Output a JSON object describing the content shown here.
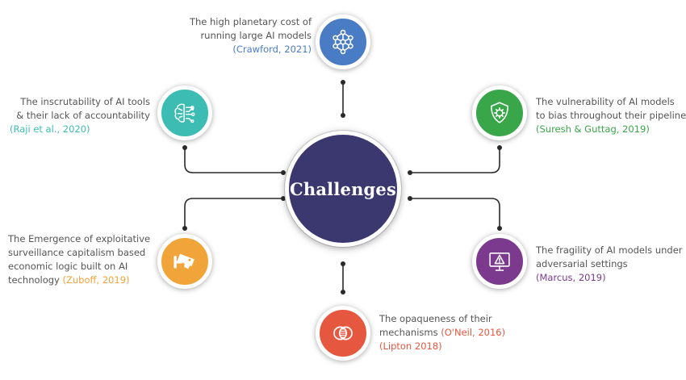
{
  "hub": {
    "label": "Challenges",
    "color": "#3b3870"
  },
  "challenges": [
    {
      "id": "planetary-cost",
      "color": "#4a7cc6",
      "icon": "neural-network-icon",
      "lines": [
        "The high planetary cost of",
        "running large AI models"
      ],
      "citation": "(Crawford, 2021)"
    },
    {
      "id": "inscrutability",
      "color": "#3cbcb3",
      "icon": "ai-brain-icon",
      "lines": [
        "The inscrutability of AI tools",
        "& their lack of accountability"
      ],
      "citation": "(Raji et al., 2020)"
    },
    {
      "id": "bias-vulnerability",
      "color": "#3aa64a",
      "icon": "shield-virus-icon",
      "lines": [
        "The vulnerability of AI models",
        "to bias throughout their pipeline"
      ],
      "citation": "(Suresh & Guttag, 2019)"
    },
    {
      "id": "surveillance-capitalism",
      "color": "#f0a43a",
      "icon": "security-camera-icon",
      "lines": [
        "The Emergence of exploitative",
        "surveillance capitalism based",
        "economic logic built on AI"
      ],
      "last_line": "technology",
      "citation": "(Zuboff, 2019)"
    },
    {
      "id": "adversarial-fragility",
      "color": "#7b3a8e",
      "icon": "monitor-warning-icon",
      "lines": [
        "The fragility of AI models under",
        "adversarial settings"
      ],
      "citation": "(Marcus, 2019)"
    },
    {
      "id": "opaqueness",
      "color": "#e5583f",
      "icon": "overlapping-circles-icon",
      "lines": [
        "The opaqueness of their"
      ],
      "inline_prefix": "mechanisms",
      "inline_citation": "(O'Neil, 2016)",
      "citation": "(Lipton 2018)"
    }
  ]
}
